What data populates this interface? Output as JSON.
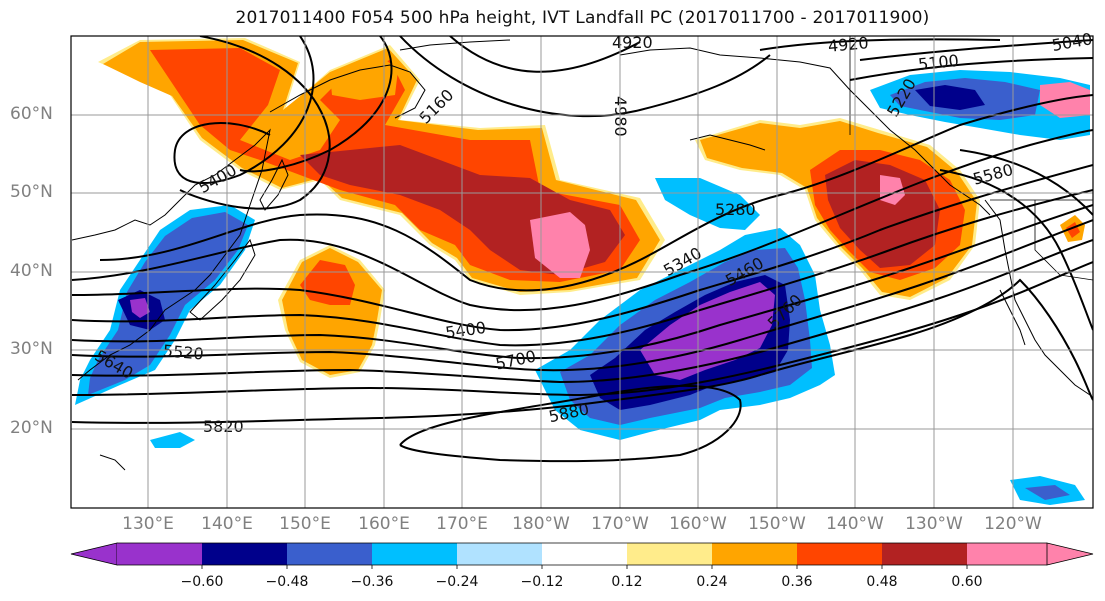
{
  "title": "2017011400 F054 500 hPa height, IVT Landfall PC (2017011700 - 2017011900)",
  "map": {
    "lat_labels": [
      "60°N",
      "50°N",
      "40°N",
      "30°N",
      "20°N"
    ],
    "lon_labels": [
      "130°E",
      "140°E",
      "150°E",
      "160°E",
      "170°E",
      "180°W",
      "170°W",
      "160°W",
      "150°W",
      "140°W",
      "130°W",
      "120°W"
    ],
    "contour_labels": [
      "4920",
      "4980",
      "4920",
      "5040",
      "5100",
      "5160",
      "5220",
      "5400",
      "5580",
      "5280",
      "5340",
      "5400",
      "5460",
      "5520",
      "5640",
      "5700",
      "5760",
      "5880",
      "5820"
    ]
  },
  "colorbar": {
    "ticks": [
      "−0.60",
      "−0.48",
      "−0.36",
      "−0.24",
      "−0.12",
      "0.12",
      "0.24",
      "0.36",
      "0.48",
      "0.60"
    ],
    "colors": [
      "#9932cc",
      "#00008b",
      "#3a5fcd",
      "#00bfff",
      "#b0e2ff",
      "#ffffff",
      "#ffec8b",
      "#ffa500",
      "#ff4500",
      "#b22222",
      "#ff82ab"
    ]
  }
}
